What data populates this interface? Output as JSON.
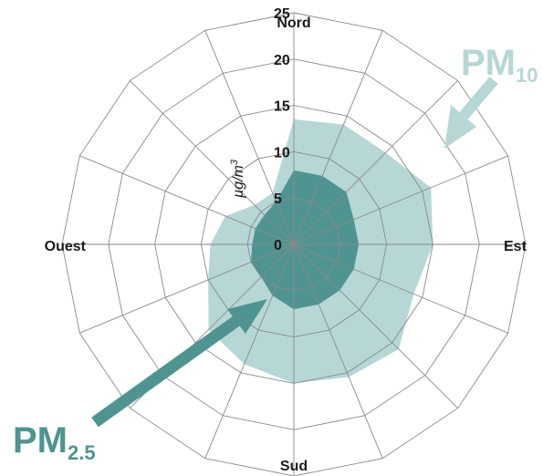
{
  "chart_data": {
    "type": "radar",
    "directions": {
      "north": "Nord",
      "east": "Est",
      "south": "Sud",
      "west": "Ouest"
    },
    "unit": {
      "base": "µg/m",
      "superscript": "3"
    },
    "radial_ticks": [
      "0",
      "5",
      "10",
      "15",
      "20",
      "25"
    ],
    "rmax": 25,
    "spokes": 16,
    "series": [
      {
        "label_main": "PM",
        "label_sub": "10",
        "color": "#b6d7d6",
        "values": [
          13.5,
          14,
          14,
          16,
          15,
          14,
          16,
          15.5,
          15,
          14,
          13,
          10,
          9,
          8,
          6,
          6
        ]
      },
      {
        "label_main": "PM",
        "label_sub": "2.5",
        "color": "#4f9490",
        "values": [
          8,
          8,
          8,
          7,
          7,
          7,
          7,
          7,
          7,
          6,
          5,
          5,
          4.5,
          4.5,
          4.5,
          5
        ]
      }
    ],
    "colors": {
      "grid": "#8a8a8a",
      "arrow": "#4f9490",
      "pm10_label": "#b6d7d6",
      "pm25_label": "#4f9490",
      "pm10_arrow": "#b6d7d6"
    }
  }
}
